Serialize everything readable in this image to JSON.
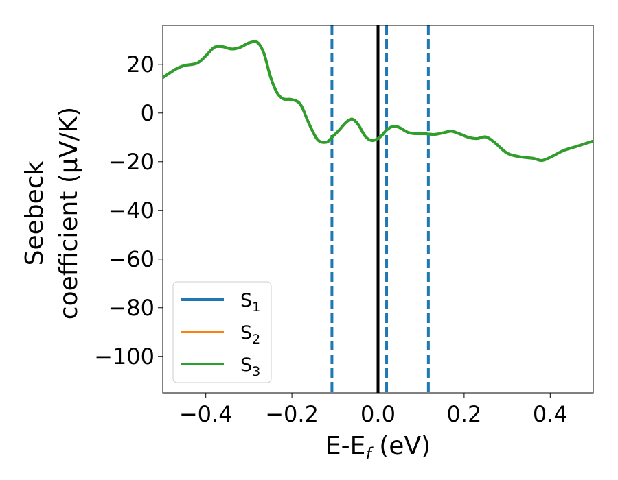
{
  "chart_data": {
    "type": "line",
    "xlabel_main": "E-E",
    "xlabel_sub": "f",
    "xlabel_unit": " (eV)",
    "ylabel_line1": "Seebeck",
    "ylabel_line2": "coefficient  (μV/K)",
    "xlim": [
      -0.5,
      0.5
    ],
    "ylim": [
      -115,
      36
    ],
    "x_ticks": [
      -0.4,
      -0.2,
      0.0,
      0.2,
      0.4
    ],
    "x_tick_labels": [
      "−0.4",
      "−0.2",
      "0.0",
      "0.2",
      "0.4"
    ],
    "y_ticks": [
      20,
      0,
      -20,
      -40,
      -60,
      -80,
      -100
    ],
    "y_tick_labels": [
      "20",
      "0",
      "−20",
      "−40",
      "−60",
      "−80",
      "−100"
    ],
    "legend_position": "lower-left",
    "grid": false,
    "series": [
      {
        "name": "S",
        "sub": "1",
        "color": "#1f77b4",
        "values_same_as": "S3"
      },
      {
        "name": "S",
        "sub": "2",
        "color": "#ff7f0e",
        "values_same_as": "S3"
      },
      {
        "name": "S",
        "sub": "3",
        "color": "#2ca02c",
        "x": [
          -0.5,
          -0.47,
          -0.45,
          -0.42,
          -0.4,
          -0.38,
          -0.36,
          -0.34,
          -0.32,
          -0.3,
          -0.28,
          -0.265,
          -0.25,
          -0.235,
          -0.22,
          -0.2,
          -0.18,
          -0.16,
          -0.14,
          -0.12,
          -0.107,
          -0.09,
          -0.075,
          -0.06,
          -0.045,
          -0.03,
          -0.015,
          0.0,
          0.01,
          0.02,
          0.035,
          0.05,
          0.07,
          0.09,
          0.11,
          0.13,
          0.15,
          0.17,
          0.19,
          0.21,
          0.23,
          0.25,
          0.27,
          0.3,
          0.33,
          0.36,
          0.38,
          0.4,
          0.43,
          0.46,
          0.5
        ],
        "y": [
          14.5,
          18,
          19.5,
          20.5,
          23.5,
          27,
          27.2,
          26.3,
          27.0,
          28.8,
          29.0,
          24.5,
          15,
          8.5,
          5.8,
          5.5,
          3.5,
          -4.5,
          -11.0,
          -12.0,
          -10.0,
          -7.0,
          -4.0,
          -2.5,
          -5.0,
          -9.5,
          -11.3,
          -10.5,
          -9.0,
          -7.0,
          -5.5,
          -6.0,
          -8.0,
          -8.5,
          -8.5,
          -8.8,
          -8.2,
          -7.5,
          -8.6,
          -10.0,
          -10.5,
          -9.8,
          -12.0,
          -16.5,
          -18.0,
          -18.6,
          -19.5,
          -18.2,
          -15.5,
          -13.8,
          -11.5
        ]
      }
    ],
    "vlines": [
      {
        "x": -0.107,
        "color": "#1f77b4",
        "style": "dashed"
      },
      {
        "x": 0.0,
        "color": "#000000",
        "style": "solid"
      },
      {
        "x": 0.02,
        "color": "#1f77b4",
        "style": "dashed"
      },
      {
        "x": 0.117,
        "color": "#1f77b4",
        "style": "dashed"
      }
    ]
  }
}
